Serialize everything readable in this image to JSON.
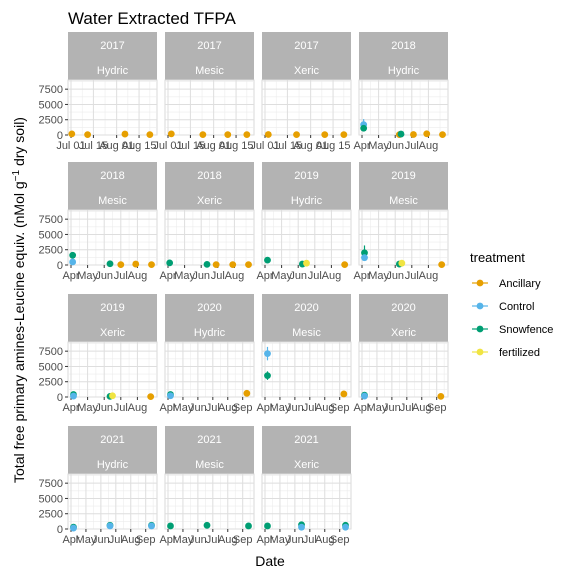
{
  "chart_data": {
    "type": "scatter",
    "title": "Water Extracted TFPA",
    "xlabel": "Date",
    "ylabel_main": "Total free primary amines-Leucine equiv. (nMol g",
    "ylabel_sup": "−1",
    "ylabel_end": " dry soil)",
    "ylim": [
      0,
      9000
    ],
    "y_ticks": [
      "0",
      "2500",
      "5000",
      "7500"
    ],
    "y_tick_values": [
      0,
      2500,
      5000,
      7500
    ],
    "grid": true,
    "legend_title": "treatment",
    "legend_placement": "right",
    "series": [
      {
        "name": "Ancillary",
        "color": "#E69F00"
      },
      {
        "name": "Control",
        "color": "#56B4E9"
      },
      {
        "name": "Snowfence",
        "color": "#009E73"
      },
      {
        "name": "fertilized",
        "color": "#F0E442"
      }
    ],
    "panels": [
      {
        "year": "2017",
        "site": "Hydric",
        "xlim": [
          0,
          1
        ],
        "x_ticks": [
          "Jul 01",
          "Jul 15",
          "Aug 01",
          "Aug 15"
        ],
        "x_tick_pos": [
          0.0,
          0.27,
          0.55,
          0.82
        ],
        "points": [
          {
            "t": "Ancillary",
            "x": 0.01,
            "y": 180
          },
          {
            "t": "Ancillary",
            "x": 0.2,
            "y": 60
          },
          {
            "t": "Ancillary",
            "x": 0.65,
            "y": 150
          },
          {
            "t": "Ancillary",
            "x": 0.95,
            "y": 60
          }
        ]
      },
      {
        "year": "2017",
        "site": "Mesic",
        "xlim": [
          0,
          1
        ],
        "x_ticks": [
          "Jul 01",
          "Jul 15",
          "Aug 01",
          "Aug 15"
        ],
        "x_tick_pos": [
          0.0,
          0.27,
          0.55,
          0.82
        ],
        "points": [
          {
            "t": "Ancillary",
            "x": 0.04,
            "y": 180
          },
          {
            "t": "Ancillary",
            "x": 0.42,
            "y": 60
          },
          {
            "t": "Ancillary",
            "x": 0.72,
            "y": 60
          },
          {
            "t": "Ancillary",
            "x": 0.95,
            "y": 60
          }
        ]
      },
      {
        "year": "2017",
        "site": "Xeric",
        "xlim": [
          0,
          1
        ],
        "x_ticks": [
          "Jul 01",
          "Jul 15",
          "Aug 01",
          "Aug 15"
        ],
        "x_tick_pos": [
          0.0,
          0.27,
          0.55,
          0.82
        ],
        "points": [
          {
            "t": "Ancillary",
            "x": 0.04,
            "y": 80
          },
          {
            "t": "Ancillary",
            "x": 0.38,
            "y": 60
          },
          {
            "t": "Ancillary",
            "x": 0.72,
            "y": 60
          },
          {
            "t": "Ancillary",
            "x": 0.95,
            "y": 60
          }
        ]
      },
      {
        "year": "2018",
        "site": "Hydric",
        "xlim": [
          0,
          1
        ],
        "x_ticks": [
          "Apr",
          "May",
          "Jun",
          "Jul",
          "Aug"
        ],
        "x_tick_pos": [
          0.0,
          0.2,
          0.4,
          0.6,
          0.8
        ],
        "points": [
          {
            "t": "Control",
            "x": 0.02,
            "y": 1700,
            "err": 900
          },
          {
            "t": "Snowfence",
            "x": 0.02,
            "y": 1100,
            "err": 500
          },
          {
            "t": "Ancillary",
            "x": 0.45,
            "y": 60
          },
          {
            "t": "Snowfence",
            "x": 0.47,
            "y": 150
          },
          {
            "t": "Ancillary",
            "x": 0.62,
            "y": 80
          },
          {
            "t": "Ancillary",
            "x": 0.78,
            "y": 200
          },
          {
            "t": "Ancillary",
            "x": 0.97,
            "y": 60
          }
        ]
      },
      {
        "year": "2018",
        "site": "Mesic",
        "xlim": [
          0,
          1
        ],
        "x_ticks": [
          "Apr",
          "May",
          "Jun",
          "Jul",
          "Aug"
        ],
        "x_tick_pos": [
          0.0,
          0.2,
          0.4,
          0.6,
          0.8
        ],
        "points": [
          {
            "t": "Snowfence",
            "x": 0.02,
            "y": 1600
          },
          {
            "t": "Control",
            "x": 0.02,
            "y": 500
          },
          {
            "t": "Snowfence",
            "x": 0.47,
            "y": 200
          },
          {
            "t": "Ancillary",
            "x": 0.6,
            "y": 60
          },
          {
            "t": "Ancillary",
            "x": 0.78,
            "y": 150
          },
          {
            "t": "Ancillary",
            "x": 0.97,
            "y": 60
          }
        ]
      },
      {
        "year": "2018",
        "site": "Xeric",
        "xlim": [
          0,
          1
        ],
        "x_ticks": [
          "Apr",
          "May",
          "Jun",
          "Jul",
          "Aug"
        ],
        "x_tick_pos": [
          0.0,
          0.2,
          0.4,
          0.6,
          0.8
        ],
        "points": [
          {
            "t": "Snowfence",
            "x": 0.02,
            "y": 350
          },
          {
            "t": "Snowfence",
            "x": 0.47,
            "y": 100
          },
          {
            "t": "Ancillary",
            "x": 0.58,
            "y": 60
          },
          {
            "t": "Ancillary",
            "x": 0.78,
            "y": 60
          },
          {
            "t": "Ancillary",
            "x": 0.97,
            "y": 60
          }
        ]
      },
      {
        "year": "2019",
        "site": "Hydric",
        "xlim": [
          0,
          1
        ],
        "x_ticks": [
          "Apr",
          "May",
          "Jun",
          "Jul",
          "Aug"
        ],
        "x_tick_pos": [
          0.0,
          0.2,
          0.4,
          0.6,
          0.8
        ],
        "points": [
          {
            "t": "Snowfence",
            "x": 0.03,
            "y": 800
          },
          {
            "t": "Snowfence",
            "x": 0.45,
            "y": 150
          },
          {
            "t": "fertilized",
            "x": 0.5,
            "y": 300
          },
          {
            "t": "Ancillary",
            "x": 0.96,
            "y": 60
          }
        ]
      },
      {
        "year": "2019",
        "site": "Mesic",
        "xlim": [
          0,
          1
        ],
        "x_ticks": [
          "Apr",
          "May",
          "Jun",
          "Jul",
          "Aug"
        ],
        "x_tick_pos": [
          0.0,
          0.2,
          0.4,
          0.6,
          0.8
        ],
        "points": [
          {
            "t": "Snowfence",
            "x": 0.03,
            "y": 2000,
            "err": 1200
          },
          {
            "t": "Control",
            "x": 0.03,
            "y": 1200
          },
          {
            "t": "Snowfence",
            "x": 0.45,
            "y": 150
          },
          {
            "t": "fertilized",
            "x": 0.48,
            "y": 300
          },
          {
            "t": "Ancillary",
            "x": 0.96,
            "y": 60
          }
        ]
      },
      {
        "year": "2019",
        "site": "Xeric",
        "xlim": [
          0,
          1
        ],
        "x_ticks": [
          "Apr",
          "May",
          "Jun",
          "Jul",
          "Aug"
        ],
        "x_tick_pos": [
          0.0,
          0.2,
          0.4,
          0.6,
          0.8
        ],
        "points": [
          {
            "t": "Snowfence",
            "x": 0.03,
            "y": 400
          },
          {
            "t": "Control",
            "x": 0.03,
            "y": 150
          },
          {
            "t": "Snowfence",
            "x": 0.47,
            "y": 100
          },
          {
            "t": "fertilized",
            "x": 0.5,
            "y": 200
          },
          {
            "t": "Ancillary",
            "x": 0.96,
            "y": 60
          }
        ]
      },
      {
        "year": "2020",
        "site": "Hydric",
        "xlim": [
          0,
          1
        ],
        "x_ticks": [
          "Apr",
          "May",
          "Jun",
          "Jul",
          "Aug",
          "Sep"
        ],
        "x_tick_pos": [
          0.0,
          0.18,
          0.36,
          0.54,
          0.72,
          0.9
        ],
        "points": [
          {
            "t": "Snowfence",
            "x": 0.03,
            "y": 400
          },
          {
            "t": "Control",
            "x": 0.03,
            "y": 200
          },
          {
            "t": "Ancillary",
            "x": 0.95,
            "y": 600
          }
        ]
      },
      {
        "year": "2020",
        "site": "Mesic",
        "xlim": [
          0,
          1
        ],
        "x_ticks": [
          "Apr",
          "May",
          "Jun",
          "Jul",
          "Aug",
          "Sep"
        ],
        "x_tick_pos": [
          0.0,
          0.18,
          0.36,
          0.54,
          0.72,
          0.9
        ],
        "points": [
          {
            "t": "Control",
            "x": 0.03,
            "y": 7100,
            "err": 1100
          },
          {
            "t": "Snowfence",
            "x": 0.03,
            "y": 3500,
            "err": 700
          },
          {
            "t": "Ancillary",
            "x": 0.95,
            "y": 500
          }
        ]
      },
      {
        "year": "2020",
        "site": "Xeric",
        "xlim": [
          0,
          1
        ],
        "x_ticks": [
          "Apr",
          "May",
          "Jun",
          "Jul",
          "Aug",
          "Sep"
        ],
        "x_tick_pos": [
          0.0,
          0.18,
          0.36,
          0.54,
          0.72,
          0.9
        ],
        "points": [
          {
            "t": "Snowfence",
            "x": 0.03,
            "y": 300
          },
          {
            "t": "Control",
            "x": 0.03,
            "y": 150
          },
          {
            "t": "Ancillary",
            "x": 0.95,
            "y": 100
          }
        ]
      },
      {
        "year": "2021",
        "site": "Hydric",
        "xlim": [
          0,
          1
        ],
        "x_ticks": [
          "Apr",
          "May",
          "Jun",
          "Jul",
          "Aug",
          "Sep"
        ],
        "x_tick_pos": [
          0.0,
          0.18,
          0.36,
          0.54,
          0.72,
          0.9
        ],
        "points": [
          {
            "t": "Snowfence",
            "x": 0.03,
            "y": 300,
            "err": 300
          },
          {
            "t": "Control",
            "x": 0.03,
            "y": 150
          },
          {
            "t": "Snowfence",
            "x": 0.47,
            "y": 600
          },
          {
            "t": "Control",
            "x": 0.47,
            "y": 500
          },
          {
            "t": "Snowfence",
            "x": 0.97,
            "y": 600
          },
          {
            "t": "Control",
            "x": 0.97,
            "y": 500
          }
        ]
      },
      {
        "year": "2021",
        "site": "Mesic",
        "xlim": [
          0,
          1
        ],
        "x_ticks": [
          "Apr",
          "May",
          "Jun",
          "Jul",
          "Aug",
          "Sep"
        ],
        "x_tick_pos": [
          0.0,
          0.18,
          0.36,
          0.54,
          0.72,
          0.9
        ],
        "points": [
          {
            "t": "Snowfence",
            "x": 0.03,
            "y": 500
          },
          {
            "t": "Snowfence",
            "x": 0.47,
            "y": 600
          },
          {
            "t": "Snowfence",
            "x": 0.97,
            "y": 500
          }
        ]
      },
      {
        "year": "2021",
        "site": "Xeric",
        "xlim": [
          0,
          1
        ],
        "x_ticks": [
          "Apr",
          "May",
          "Jun",
          "Jul",
          "Aug",
          "Sep"
        ],
        "x_tick_pos": [
          0.0,
          0.18,
          0.36,
          0.54,
          0.72,
          0.9
        ],
        "points": [
          {
            "t": "Snowfence",
            "x": 0.03,
            "y": 500
          },
          {
            "t": "Snowfence",
            "x": 0.44,
            "y": 700
          },
          {
            "t": "Control",
            "x": 0.44,
            "y": 300
          },
          {
            "t": "Snowfence",
            "x": 0.97,
            "y": 600
          },
          {
            "t": "Control",
            "x": 0.97,
            "y": 300
          }
        ]
      }
    ]
  }
}
